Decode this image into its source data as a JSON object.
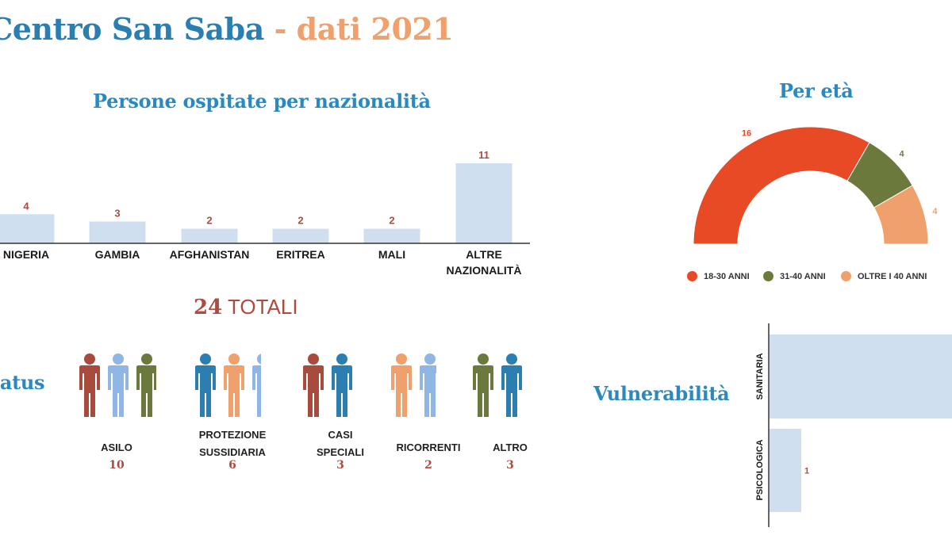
{
  "header": {
    "title_main": "Centro San Saba",
    "title_sep": " - ",
    "title_year": "dati 2021"
  },
  "nationality": {
    "title": "Persone ospitate per nazionalità",
    "totals_number": "24",
    "totals_label": " TOTALI"
  },
  "age": {
    "title": "Per età"
  },
  "status": {
    "title": "Status",
    "groups": [
      {
        "label_lines": [
          "ASILO"
        ],
        "value": "10",
        "figure_colors": [
          "#a84a3c",
          "#8fb6e4",
          "#6b7a3c"
        ]
      },
      {
        "label_lines": [
          "PROTEZIONE",
          "SUSSIDIARIA"
        ],
        "value": "6",
        "figure_colors": [
          "#2a7fb0",
          "#f0a06c",
          "#8fb6e4"
        ]
      },
      {
        "label_lines": [
          "CASI",
          "SPECIALI"
        ],
        "value": "3",
        "figure_colors": [
          "#a84a3c",
          "#2a7fb0"
        ]
      },
      {
        "label_lines": [
          "RICORRENTI"
        ],
        "value": "2",
        "figure_colors": [
          "#f0a06c",
          "#8fb6e4"
        ]
      },
      {
        "label_lines": [
          "ALTRO"
        ],
        "value": "3",
        "figure_colors": [
          "#6b7a3c",
          "#2a7fb0"
        ]
      }
    ]
  },
  "vulnerability": {
    "title": "Vulnerabilità"
  },
  "colors": {
    "bar_fill": "#cfdff0",
    "value_label": "#b04a3e",
    "age_18_30": "#e84a26",
    "age_31_40": "#6b7a3c",
    "age_over_40": "#f0a06c"
  },
  "chart_data": [
    {
      "type": "bar",
      "title": "Persone ospitate per nazionalità",
      "categories": [
        "NIGERIA",
        "GAMBIA",
        "AFGHANISTAN",
        "ERITREA",
        "MALI",
        "ALTRE NAZIONALITÀ"
      ],
      "values": [
        4,
        3,
        2,
        2,
        2,
        11
      ],
      "value_labels": [
        "4",
        "3",
        "2",
        "2",
        "2",
        "11"
      ],
      "ylim": [
        0,
        11
      ],
      "grid": false
    },
    {
      "type": "pie",
      "subtype": "half-donut",
      "title": "Per età",
      "categories": [
        "18-30 ANNI",
        "31-40 ANNI",
        "OLTRE I 40 ANNI"
      ],
      "values": [
        16,
        4,
        4
      ],
      "value_labels": [
        "16",
        "4",
        "4"
      ],
      "legend": "bottom"
    },
    {
      "type": "bar",
      "orientation": "horizontal",
      "title": "Vulnerabilità",
      "categories": [
        "SANITARIA",
        "PSICOLOGICA"
      ],
      "values": [
        null,
        1
      ],
      "value_labels": [
        "",
        "1"
      ]
    }
  ]
}
